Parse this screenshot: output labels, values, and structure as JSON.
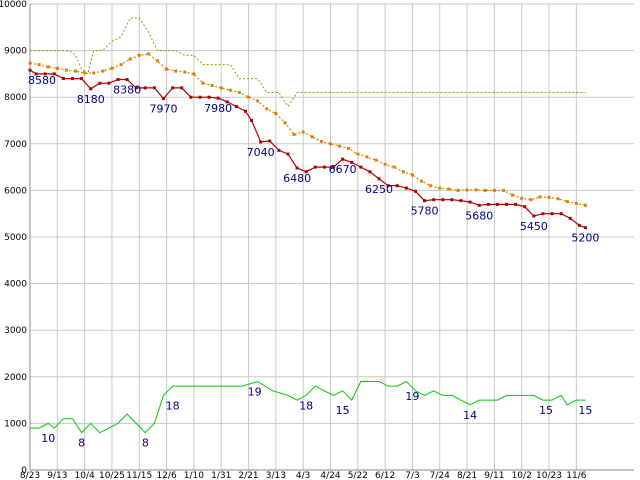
{
  "chart_data": {
    "type": "line",
    "ylim": [
      0,
      10000
    ],
    "yticks": [
      0,
      1000,
      2000,
      3000,
      4000,
      5000,
      6000,
      7000,
      8000,
      9000,
      10000
    ],
    "xlim": [
      0,
      199
    ],
    "x_ticks": [
      {
        "x": 0,
        "label": "8/23"
      },
      {
        "x": 9,
        "label": "9/13"
      },
      {
        "x": 18,
        "label": "10/4"
      },
      {
        "x": 27,
        "label": "10/25"
      },
      {
        "x": 36,
        "label": "11/15"
      },
      {
        "x": 45,
        "label": "12/6"
      },
      {
        "x": 54,
        "label": "1/10"
      },
      {
        "x": 63,
        "label": "1/31"
      },
      {
        "x": 72,
        "label": "2/21"
      },
      {
        "x": 81,
        "label": "3/13"
      },
      {
        "x": 90,
        "label": "4/3"
      },
      {
        "x": 99,
        "label": "4/24"
      },
      {
        "x": 108,
        "label": "5/22"
      },
      {
        "x": 117,
        "label": "6/12"
      },
      {
        "x": 126,
        "label": "7/3"
      },
      {
        "x": 135,
        "label": "7/24"
      },
      {
        "x": 144,
        "label": "8/21"
      },
      {
        "x": 153,
        "label": "9/11"
      },
      {
        "x": 162,
        "label": "10/2"
      },
      {
        "x": 171,
        "label": "10/23"
      },
      {
        "x": 180,
        "label": "11/6"
      }
    ],
    "grid": true,
    "legend": "none",
    "series": [
      {
        "role": "price",
        "color": "#b00000",
        "points": [
          [
            0,
            8580
          ],
          [
            2,
            8500
          ],
          [
            5,
            8500
          ],
          [
            8,
            8500
          ],
          [
            11,
            8400
          ],
          [
            14,
            8400
          ],
          [
            17,
            8400
          ],
          [
            20,
            8180
          ],
          [
            23,
            8300
          ],
          [
            26,
            8300
          ],
          [
            29,
            8380
          ],
          [
            32,
            8380
          ],
          [
            35,
            8200
          ],
          [
            38,
            8200
          ],
          [
            41,
            8200
          ],
          [
            44,
            7970
          ],
          [
            47,
            8200
          ],
          [
            50,
            8200
          ],
          [
            53,
            8000
          ],
          [
            56,
            8000
          ],
          [
            59,
            8000
          ],
          [
            62,
            7980
          ],
          [
            65,
            7900
          ],
          [
            68,
            7800
          ],
          [
            71,
            7700
          ],
          [
            73,
            7500
          ],
          [
            76,
            7040
          ],
          [
            79,
            7060
          ],
          [
            82,
            6860
          ],
          [
            85,
            6780
          ],
          [
            88,
            6480
          ],
          [
            91,
            6400
          ],
          [
            94,
            6500
          ],
          [
            97,
            6500
          ],
          [
            100,
            6500
          ],
          [
            103,
            6670
          ],
          [
            106,
            6600
          ],
          [
            109,
            6500
          ],
          [
            112,
            6400
          ],
          [
            115,
            6250
          ],
          [
            118,
            6100
          ],
          [
            121,
            6100
          ],
          [
            124,
            6050
          ],
          [
            127,
            5980
          ],
          [
            130,
            5780
          ],
          [
            133,
            5800
          ],
          [
            136,
            5800
          ],
          [
            139,
            5800
          ],
          [
            142,
            5780
          ],
          [
            145,
            5750
          ],
          [
            148,
            5680
          ],
          [
            151,
            5700
          ],
          [
            154,
            5700
          ],
          [
            157,
            5700
          ],
          [
            160,
            5700
          ],
          [
            163,
            5650
          ],
          [
            166,
            5450
          ],
          [
            169,
            5500
          ],
          [
            172,
            5500
          ],
          [
            175,
            5500
          ],
          [
            178,
            5400
          ],
          [
            181,
            5250
          ],
          [
            183,
            5200
          ]
        ]
      },
      {
        "role": "moving-average",
        "color": "#e08000",
        "points": [
          [
            0,
            8730
          ],
          [
            3,
            8700
          ],
          [
            6,
            8650
          ],
          [
            9,
            8620
          ],
          [
            12,
            8580
          ],
          [
            15,
            8560
          ],
          [
            18,
            8520
          ],
          [
            21,
            8520
          ],
          [
            24,
            8560
          ],
          [
            27,
            8620
          ],
          [
            30,
            8700
          ],
          [
            33,
            8820
          ],
          [
            36,
            8900
          ],
          [
            39,
            8930
          ],
          [
            42,
            8780
          ],
          [
            45,
            8600
          ],
          [
            48,
            8560
          ],
          [
            51,
            8540
          ],
          [
            54,
            8500
          ],
          [
            57,
            8300
          ],
          [
            60,
            8250
          ],
          [
            63,
            8200
          ],
          [
            66,
            8150
          ],
          [
            69,
            8100
          ],
          [
            72,
            8000
          ],
          [
            75,
            7920
          ],
          [
            78,
            7750
          ],
          [
            81,
            7650
          ],
          [
            84,
            7450
          ],
          [
            87,
            7200
          ],
          [
            90,
            7250
          ],
          [
            93,
            7150
          ],
          [
            96,
            7050
          ],
          [
            99,
            7000
          ],
          [
            102,
            6950
          ],
          [
            105,
            6900
          ],
          [
            108,
            6780
          ],
          [
            111,
            6720
          ],
          [
            114,
            6650
          ],
          [
            117,
            6560
          ],
          [
            120,
            6500
          ],
          [
            123,
            6400
          ],
          [
            126,
            6330
          ],
          [
            129,
            6200
          ],
          [
            132,
            6100
          ],
          [
            135,
            6050
          ],
          [
            138,
            6030
          ],
          [
            141,
            6000
          ],
          [
            144,
            6010
          ],
          [
            147,
            6010
          ],
          [
            150,
            6000
          ],
          [
            153,
            6000
          ],
          [
            156,
            6000
          ],
          [
            159,
            5900
          ],
          [
            162,
            5830
          ],
          [
            165,
            5800
          ],
          [
            168,
            5860
          ],
          [
            171,
            5850
          ],
          [
            174,
            5820
          ],
          [
            177,
            5760
          ],
          [
            180,
            5720
          ],
          [
            183,
            5680
          ]
        ]
      },
      {
        "role": "upper-band",
        "color": "#999900",
        "points": [
          [
            0,
            9000
          ],
          [
            10,
            9000
          ],
          [
            13,
            9000
          ],
          [
            15,
            8900
          ],
          [
            17,
            8600
          ],
          [
            19,
            8500
          ],
          [
            21,
            9000
          ],
          [
            24,
            9000
          ],
          [
            27,
            9200
          ],
          [
            30,
            9300
          ],
          [
            33,
            9700
          ],
          [
            36,
            9700
          ],
          [
            39,
            9400
          ],
          [
            42,
            9000
          ],
          [
            48,
            9000
          ],
          [
            51,
            8900
          ],
          [
            54,
            8900
          ],
          [
            57,
            8700
          ],
          [
            66,
            8700
          ],
          [
            69,
            8400
          ],
          [
            75,
            8400
          ],
          [
            78,
            8100
          ],
          [
            82,
            8100
          ],
          [
            85,
            7800
          ],
          [
            88,
            8100
          ],
          [
            120,
            8100
          ],
          [
            160,
            8100
          ],
          [
            183,
            8100
          ]
        ]
      },
      {
        "role": "volume",
        "color": "#00cc00",
        "points": [
          [
            0,
            900
          ],
          [
            3,
            900
          ],
          [
            6,
            1000
          ],
          [
            8,
            900
          ],
          [
            11,
            1100
          ],
          [
            14,
            1100
          ],
          [
            17,
            800
          ],
          [
            20,
            1000
          ],
          [
            23,
            800
          ],
          [
            26,
            900
          ],
          [
            29,
            1000
          ],
          [
            32,
            1200
          ],
          [
            35,
            1000
          ],
          [
            38,
            800
          ],
          [
            41,
            1000
          ],
          [
            44,
            1600
          ],
          [
            47,
            1800
          ],
          [
            50,
            1800
          ],
          [
            56,
            1800
          ],
          [
            60,
            1800
          ],
          [
            65,
            1800
          ],
          [
            70,
            1800
          ],
          [
            75,
            1900
          ],
          [
            80,
            1700
          ],
          [
            85,
            1600
          ],
          [
            88,
            1500
          ],
          [
            91,
            1600
          ],
          [
            94,
            1800
          ],
          [
            97,
            1700
          ],
          [
            100,
            1600
          ],
          [
            103,
            1700
          ],
          [
            106,
            1500
          ],
          [
            109,
            1900
          ],
          [
            112,
            1900
          ],
          [
            115,
            1900
          ],
          [
            118,
            1800
          ],
          [
            121,
            1800
          ],
          [
            124,
            1900
          ],
          [
            127,
            1700
          ],
          [
            130,
            1600
          ],
          [
            133,
            1700
          ],
          [
            136,
            1600
          ],
          [
            139,
            1600
          ],
          [
            142,
            1500
          ],
          [
            145,
            1400
          ],
          [
            148,
            1500
          ],
          [
            151,
            1500
          ],
          [
            154,
            1500
          ],
          [
            157,
            1600
          ],
          [
            160,
            1600
          ],
          [
            163,
            1600
          ],
          [
            166,
            1600
          ],
          [
            169,
            1500
          ],
          [
            172,
            1500
          ],
          [
            175,
            1600
          ],
          [
            177,
            1400
          ],
          [
            180,
            1500
          ],
          [
            183,
            1500
          ]
        ]
      }
    ],
    "annotations": [
      {
        "x": 0,
        "y": 8580,
        "text": "8580"
      },
      {
        "x": 20,
        "y": 8180,
        "text": "8180"
      },
      {
        "x": 32,
        "y": 8380,
        "text": "8380"
      },
      {
        "x": 44,
        "y": 7970,
        "text": "7970"
      },
      {
        "x": 62,
        "y": 7980,
        "text": "7980"
      },
      {
        "x": 76,
        "y": 7040,
        "text": "7040"
      },
      {
        "x": 88,
        "y": 6480,
        "text": "6480"
      },
      {
        "x": 103,
        "y": 6670,
        "text": "6670"
      },
      {
        "x": 115,
        "y": 6250,
        "text": "6250"
      },
      {
        "x": 130,
        "y": 5780,
        "text": "5780"
      },
      {
        "x": 148,
        "y": 5680,
        "text": "5680"
      },
      {
        "x": 166,
        "y": 5450,
        "text": "5450"
      },
      {
        "x": 183,
        "y": 5200,
        "text": "5200"
      },
      {
        "x": 6,
        "y": 900,
        "text": "10"
      },
      {
        "x": 17,
        "y": 800,
        "text": "8"
      },
      {
        "x": 38,
        "y": 800,
        "text": "8"
      },
      {
        "x": 47,
        "y": 1600,
        "text": "18"
      },
      {
        "x": 74,
        "y": 1900,
        "text": "19"
      },
      {
        "x": 91,
        "y": 1600,
        "text": "18"
      },
      {
        "x": 103,
        "y": 1500,
        "text": "15"
      },
      {
        "x": 126,
        "y": 1800,
        "text": "19"
      },
      {
        "x": 145,
        "y": 1400,
        "text": "14"
      },
      {
        "x": 170,
        "y": 1500,
        "text": "15"
      },
      {
        "x": 183,
        "y": 1500,
        "text": "15"
      }
    ]
  }
}
